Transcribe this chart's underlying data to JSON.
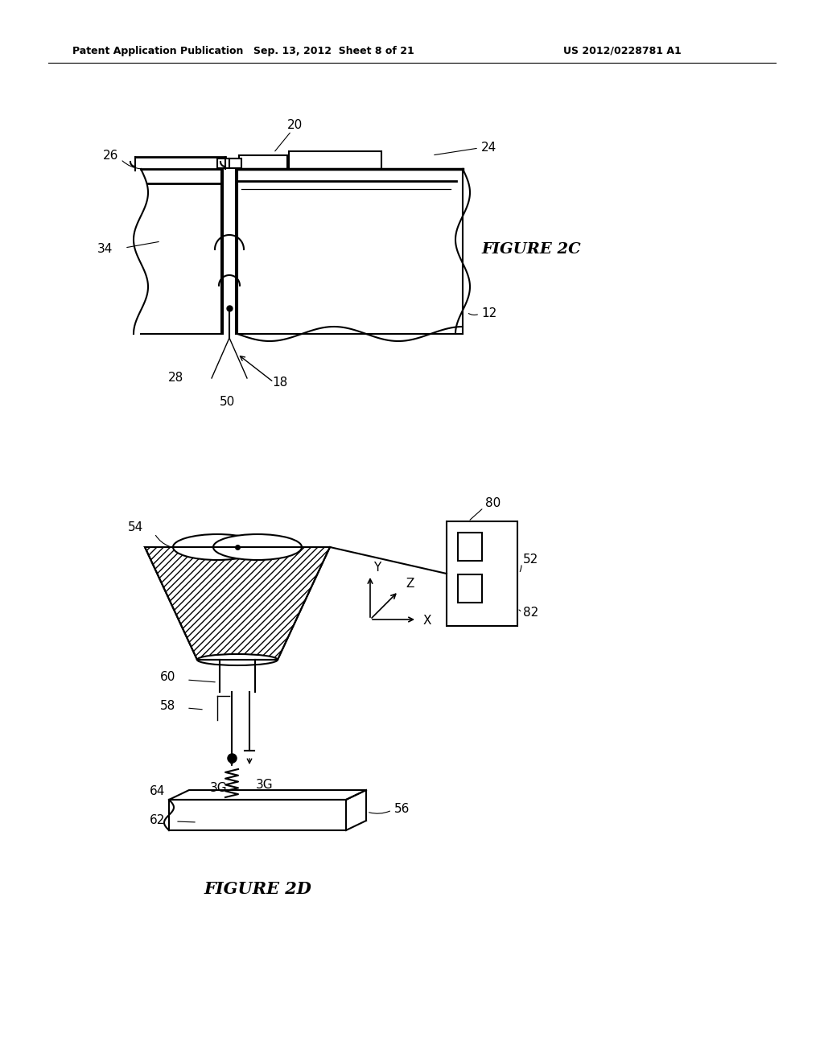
{
  "background_color": "#ffffff",
  "header_left": "Patent Application Publication",
  "header_mid": "Sep. 13, 2012  Sheet 8 of 21",
  "header_right": "US 2012/0228781 A1",
  "figure2c_label": "FIGURE 2C",
  "figure2d_label": "FIGURE 2D",
  "line_color": "#000000",
  "fig_width": 10.24,
  "fig_height": 13.2,
  "dpi": 100
}
